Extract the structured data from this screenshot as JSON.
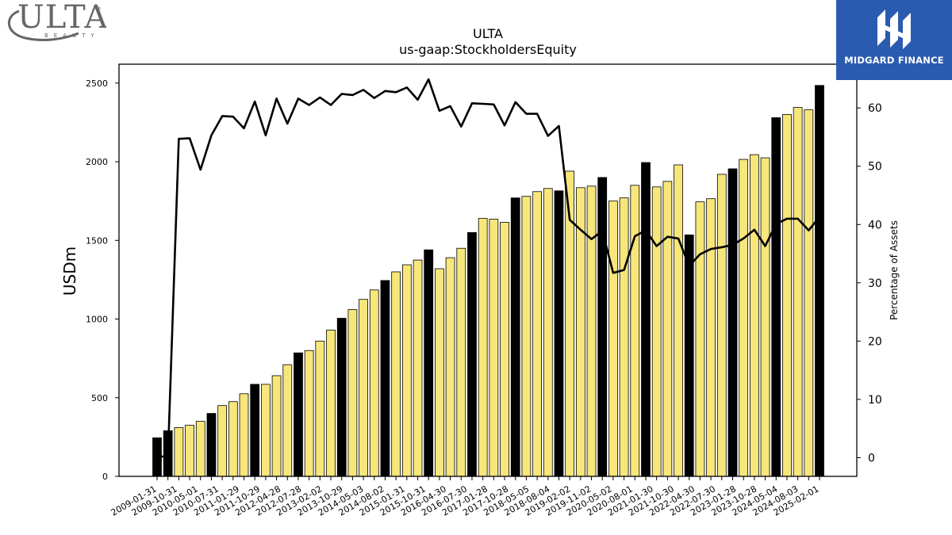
{
  "brand": {
    "ticker_logo": "ULTA",
    "ticker_logo_sub": "BEAUTY",
    "publisher_logo": "MIDGARD FINANCE"
  },
  "colors": {
    "annual_bar": "#000000",
    "quarter_bar": "#f7e67a",
    "line": "#000000"
  },
  "chart_data": {
    "type": "bar",
    "title": "ULTA",
    "subtitle": "us-gaap:StockholdersEquity",
    "ylabel": "USDm",
    "y2label": "Percentage of Assets",
    "ylim": [
      0,
      2620
    ],
    "y2lim": [
      -3.2,
      67.5
    ],
    "yticks": [
      0,
      500,
      1000,
      1500,
      2000,
      2500
    ],
    "y2ticks": [
      0,
      10,
      20,
      30,
      40,
      50,
      60
    ],
    "xtick_labels": [
      "2009-01-31",
      "2009-10-31",
      "2010-05-01",
      "2010-07-31",
      "2011-01-29",
      "2011-10-29",
      "2012-04-28",
      "2012-07-28",
      "2013-02-02",
      "2013-10-29",
      "2014-05-03",
      "2014-08-02",
      "2015-01-31",
      "2015-10-31",
      "2016-04-30",
      "2016-07-30",
      "2017-01-28",
      "2017-10-28",
      "2018-05-05",
      "2018-08-04",
      "2019-02-02",
      "2019-11-02",
      "2020-05-02",
      "2020-08-01",
      "2021-01-30",
      "2021-10-30",
      "2022-04-30",
      "2022-07-30",
      "2023-01-28",
      "2023-10-28",
      "2024-05-04",
      "2024-08-03",
      "2025-02-01"
    ],
    "bars": [
      {
        "v": 245,
        "a": true
      },
      {
        "v": 290,
        "a": true
      },
      {
        "v": 310,
        "a": false
      },
      {
        "v": 325,
        "a": false
      },
      {
        "v": 350,
        "a": false
      },
      {
        "v": 400,
        "a": true
      },
      {
        "v": 450,
        "a": false
      },
      {
        "v": 475,
        "a": false
      },
      {
        "v": 525,
        "a": false
      },
      {
        "v": 585,
        "a": true
      },
      {
        "v": 585,
        "a": false
      },
      {
        "v": 640,
        "a": false
      },
      {
        "v": 710,
        "a": false
      },
      {
        "v": 785,
        "a": true
      },
      {
        "v": 800,
        "a": false
      },
      {
        "v": 860,
        "a": false
      },
      {
        "v": 930,
        "a": false
      },
      {
        "v": 1005,
        "a": true
      },
      {
        "v": 1060,
        "a": false
      },
      {
        "v": 1125,
        "a": false
      },
      {
        "v": 1185,
        "a": false
      },
      {
        "v": 1245,
        "a": true
      },
      {
        "v": 1300,
        "a": false
      },
      {
        "v": 1345,
        "a": false
      },
      {
        "v": 1375,
        "a": false
      },
      {
        "v": 1440,
        "a": true
      },
      {
        "v": 1320,
        "a": false
      },
      {
        "v": 1390,
        "a": false
      },
      {
        "v": 1450,
        "a": false
      },
      {
        "v": 1550,
        "a": true
      },
      {
        "v": 1640,
        "a": false
      },
      {
        "v": 1635,
        "a": false
      },
      {
        "v": 1615,
        "a": false
      },
      {
        "v": 1770,
        "a": true
      },
      {
        "v": 1780,
        "a": false
      },
      {
        "v": 1810,
        "a": false
      },
      {
        "v": 1830,
        "a": false
      },
      {
        "v": 1815,
        "a": true
      },
      {
        "v": 1940,
        "a": false
      },
      {
        "v": 1835,
        "a": false
      },
      {
        "v": 1845,
        "a": false
      },
      {
        "v": 1900,
        "a": true
      },
      {
        "v": 1750,
        "a": false
      },
      {
        "v": 1770,
        "a": false
      },
      {
        "v": 1850,
        "a": false
      },
      {
        "v": 1995,
        "a": true
      },
      {
        "v": 1840,
        "a": false
      },
      {
        "v": 1875,
        "a": false
      },
      {
        "v": 1980,
        "a": false
      },
      {
        "v": 1535,
        "a": true
      },
      {
        "v": 1745,
        "a": false
      },
      {
        "v": 1765,
        "a": false
      },
      {
        "v": 1920,
        "a": false
      },
      {
        "v": 1955,
        "a": true
      },
      {
        "v": 2015,
        "a": false
      },
      {
        "v": 2045,
        "a": false
      },
      {
        "v": 2025,
        "a": false
      },
      {
        "v": 2280,
        "a": true
      },
      {
        "v": 2300,
        "a": false
      },
      {
        "v": 2345,
        "a": false
      },
      {
        "v": 2330,
        "a": false
      },
      {
        "v": 2485,
        "a": true
      }
    ],
    "pct_assets": [
      0.2,
      0.2,
      54.7,
      54.8,
      49.4,
      55.3,
      58.6,
      58.5,
      56.5,
      61.1,
      55.3,
      61.6,
      57.3,
      61.6,
      60.5,
      61.8,
      60.5,
      62.4,
      62.2,
      63.1,
      61.7,
      62.9,
      62.7,
      63.5,
      61.4,
      64.9,
      59.5,
      60.3,
      56.8,
      60.8,
      60.7,
      60.6,
      57.0,
      61.0,
      59.0,
      59.0,
      55.2,
      56.9,
      40.8,
      39.1,
      37.5,
      38.9,
      31.7,
      32.2,
      38.0,
      39.0,
      36.3,
      37.9,
      37.6,
      32.9,
      34.9,
      35.8,
      36.1,
      36.5,
      37.6,
      39.1,
      36.3,
      40.1,
      41.0,
      41.0,
      39.0,
      41.3
    ]
  }
}
